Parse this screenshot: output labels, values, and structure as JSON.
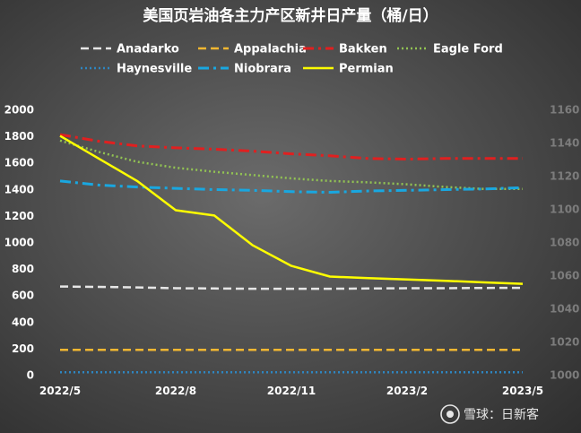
{
  "chart_data": {
    "type": "line",
    "title": "美国页岩油各主力产区新井日产量（桶/日）",
    "x": [
      "2022/5",
      "2022/6",
      "2022/7",
      "2022/8",
      "2022/9",
      "2022/10",
      "2022/11",
      "2022/12",
      "2023/1",
      "2023/2",
      "2023/3",
      "2023/4",
      "2023/5"
    ],
    "x_tick_labels": [
      "2022/5",
      "2022/8",
      "2022/11",
      "2023/2",
      "2023/5"
    ],
    "y_left": {
      "ylim": [
        0,
        2000
      ],
      "ticks": [
        0,
        200,
        400,
        600,
        800,
        1000,
        1200,
        1400,
        1600,
        1800,
        2000
      ]
    },
    "y_right": {
      "ylim": [
        1000,
        1160
      ],
      "ticks": [
        1000,
        1020,
        1040,
        1060,
        1080,
        1100,
        1120,
        1140,
        1160
      ]
    },
    "legend_position": "top",
    "grid": false,
    "series": [
      {
        "name": "Anadarko",
        "color": "#e6e6e6",
        "style": "dash",
        "values": [
          665,
          662,
          658,
          652,
          650,
          648,
          648,
          648,
          650,
          652,
          652,
          654,
          655
        ]
      },
      {
        "name": "Appalachia",
        "color": "#f2b731",
        "style": "dash",
        "values": [
          188,
          188,
          188,
          188,
          188,
          188,
          188,
          188,
          188,
          188,
          188,
          188,
          188
        ]
      },
      {
        "name": "Bakken",
        "color": "#e02020",
        "style": "dashdot",
        "values": [
          1810,
          1760,
          1725,
          1710,
          1700,
          1685,
          1665,
          1650,
          1630,
          1625,
          1630,
          1630,
          1630
        ]
      },
      {
        "name": "Eagle Ford",
        "color": "#92c353",
        "style": "dot",
        "values": [
          1765,
          1680,
          1605,
          1560,
          1530,
          1505,
          1480,
          1460,
          1450,
          1435,
          1415,
          1400,
          1400
        ]
      },
      {
        "name": "Haynesville",
        "color": "#2e86c1",
        "style": "dot",
        "values": [
          18,
          18,
          18,
          18,
          18,
          18,
          18,
          18,
          18,
          18,
          18,
          18,
          18
        ]
      },
      {
        "name": "Niobrara",
        "color": "#19a7e0",
        "style": "dashdot",
        "values": [
          1460,
          1430,
          1415,
          1405,
          1395,
          1390,
          1380,
          1375,
          1385,
          1390,
          1395,
          1400,
          1410
        ]
      },
      {
        "name": "Permian",
        "color": "#ffff00",
        "style": "solid",
        "values": [
          1800,
          1630,
          1460,
          1240,
          1200,
          975,
          820,
          740,
          728,
          718,
          708,
          696,
          685
        ]
      }
    ]
  },
  "watermark": {
    "text": "雪球：日新客",
    "icon": "snowball-logo-icon"
  }
}
